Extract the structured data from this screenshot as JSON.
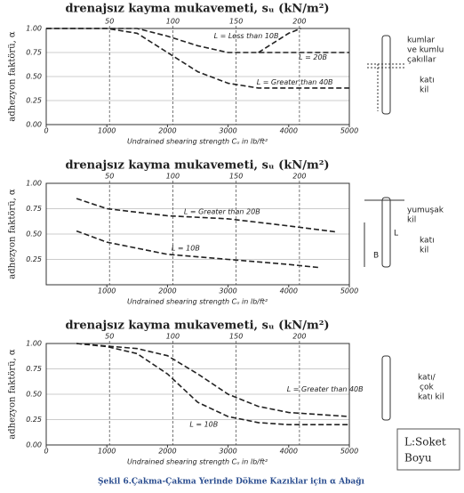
{
  "chart_data": [
    {
      "type": "line",
      "title": "drenajsız kayma mukavemeti, sᵤ (kN/m²)",
      "y_label": "adhezyon faktörü, α",
      "x_label": "Undrained shearing strength Cᵤ in lb/ft²",
      "xlim": [
        0,
        5000
      ],
      "xticks": [
        0,
        1000,
        2000,
        3000,
        4000,
        5000
      ],
      "x2lim": [
        0,
        239.4
      ],
      "x2ticks": [
        50,
        100,
        150,
        200
      ],
      "ylim": [
        0,
        1
      ],
      "yticks": [
        {
          "value": 0,
          "label": "0.00"
        },
        {
          "value": 0.25,
          "label": "0.25"
        },
        {
          "value": 0.5,
          "label": "0.50"
        },
        {
          "value": 0.75,
          "label": "0.75"
        },
        {
          "value": 1,
          "label": "1.00"
        }
      ],
      "grid": true,
      "series": [
        {
          "name": "L = Less than 10B",
          "color": "#222",
          "x": [
            3500,
            3750,
            4000,
            4200
          ],
          "values": [
            0.75,
            0.85,
            0.95,
            1.0
          ]
        },
        {
          "name": "L = 20B",
          "color": "#222",
          "x": [
            0,
            1000,
            1500,
            2000,
            2500,
            3000,
            3500,
            4000,
            5000
          ],
          "values": [
            1,
            1,
            1,
            0.92,
            0.82,
            0.75,
            0.75,
            0.75,
            0.75
          ]
        },
        {
          "name": "L = Greater than 40B",
          "color": "#222",
          "x": [
            0,
            1000,
            1500,
            2000,
            2500,
            3000,
            3500,
            4000,
            5000
          ],
          "values": [
            1,
            1,
            0.95,
            0.75,
            0.55,
            0.43,
            0.38,
            0.38,
            0.38
          ]
        }
      ]
    },
    {
      "type": "line",
      "title": "drenajsız kayma mukavemeti, sᵤ (kN/m²)",
      "y_label": "adhezyon faktörü, α",
      "x_label": "Undrained shearing strength Cᵤ in lb/ft²",
      "xlim": [
        0,
        5000
      ],
      "xticks": [
        1000,
        2000,
        3000,
        4000,
        5000
      ],
      "x2lim": [
        0,
        239.4
      ],
      "x2ticks": [
        50,
        100,
        150,
        200
      ],
      "ylim": [
        0,
        1
      ],
      "yticks": [
        {
          "value": 0.25,
          "label": "0.25"
        },
        {
          "value": 0.5,
          "label": "0.50"
        },
        {
          "value": 0.75,
          "label": "0.75"
        },
        {
          "value": 1,
          "label": "1.00"
        }
      ],
      "grid": true,
      "series": [
        {
          "name": "L = Greater than 20B",
          "color": "#222",
          "x": [
            500,
            1000,
            2000,
            3000,
            4000,
            4800
          ],
          "values": [
            0.85,
            0.75,
            0.68,
            0.65,
            0.58,
            0.52
          ]
        },
        {
          "name": "L = 10B",
          "color": "#222",
          "x": [
            500,
            1000,
            2000,
            3000,
            4000,
            4500
          ],
          "values": [
            0.53,
            0.42,
            0.3,
            0.25,
            0.2,
            0.17
          ]
        }
      ]
    },
    {
      "type": "line",
      "title": "drenajsız kayma mukavemeti, sᵤ (kN/m²)",
      "y_label": "adhezyon faktörü, α",
      "x_label": "Undrained shearing strength Cᵤ in lb/ft²",
      "xlim": [
        0,
        5000
      ],
      "xticks": [
        0,
        1000,
        2000,
        3000,
        4000,
        5000
      ],
      "x2lim": [
        0,
        239.4
      ],
      "x2ticks": [
        50,
        100,
        150,
        200
      ],
      "ylim": [
        0,
        1
      ],
      "yticks": [
        {
          "value": 0,
          "label": "0.00"
        },
        {
          "value": 0.25,
          "label": "0.25"
        },
        {
          "value": 0.5,
          "label": "0.50"
        },
        {
          "value": 0.75,
          "label": "0.75"
        },
        {
          "value": 1,
          "label": "1.00"
        }
      ],
      "grid": true,
      "series": [
        {
          "name": "L = Greater than 40B",
          "color": "#222",
          "x": [
            500,
            1500,
            2000,
            2500,
            3000,
            3500,
            4000,
            5000
          ],
          "values": [
            1,
            0.95,
            0.88,
            0.7,
            0.5,
            0.38,
            0.32,
            0.28
          ]
        },
        {
          "name": "L = 10B",
          "color": "#222",
          "x": [
            500,
            1000,
            1500,
            2000,
            2500,
            3000,
            3500,
            4000,
            5000
          ],
          "values": [
            1,
            0.97,
            0.9,
            0.7,
            0.42,
            0.28,
            0.22,
            0.2,
            0.2
          ]
        }
      ]
    }
  ],
  "soil_labels": [
    [
      "kumlar",
      "ve kumlu",
      "çakıllar",
      "katı",
      "kil"
    ],
    [
      "yumuşak",
      "kil",
      "katı",
      "kil"
    ],
    [
      "katı/",
      "çok",
      "katı kil"
    ]
  ],
  "pile_letters": [
    "L",
    "B"
  ],
  "note": [
    "L:Soket",
    "Boyu"
  ],
  "caption": "Şekil 6.Çakma-Çakma Yerinde Dökme Kazıklar için α Abağı"
}
